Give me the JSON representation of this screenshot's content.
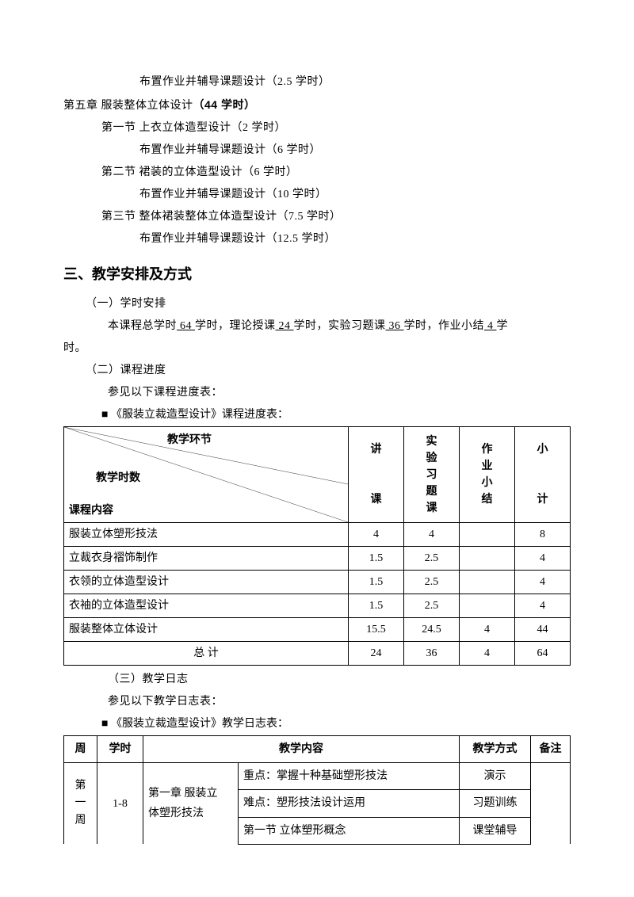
{
  "outline": {
    "l0": "布置作业并辅导课题设计（2.5 学时）",
    "chapter5": {
      "pre": "第五章  服装整体立体设计",
      "bold": "（44 学时）"
    },
    "s1": "第一节 上衣立体造型设计（2 学时）",
    "s1a": "布置作业并辅导课题设计（6 学时）",
    "s2": "第二节  裙装的立体造型设计（6 学时）",
    "s2a": "布置作业并辅导课题设计（10 学时）",
    "s3": "第三节 整体裙装整体立体造型设计（7.5 学时）",
    "s3a": "布置作业并辅导课题设计（12.5 学时）"
  },
  "h2": "三、教学安排及方式",
  "s_time": {
    "title": "（一）学时安排",
    "p_pre": "本课程总学时",
    "p_v1": " 64 ",
    "p_mid1": "学时，理论授课",
    "p_v2": "  24  ",
    "p_mid2": "学时，实验习题课",
    "p_v3": " 36 ",
    "p_mid3": "学时，作业小结",
    "p_v4": " 4  ",
    "p_tail": "学",
    "p_line2": "时。"
  },
  "s_prog": {
    "title": "（二）课程进度",
    "note": "参见以下课程进度表：",
    "bullet": "《服装立裁造型设计》课程进度表："
  },
  "tbl1": {
    "diag_top": "教学环节",
    "diag_mid": "教学时数",
    "diag_bot": "课程内容",
    "h_lecture": "讲\n\n课",
    "h_lab": "实\n验\n习\n题\n课",
    "h_hw": "作\n业\n小\n结",
    "h_sub": "小\n\n计",
    "rows": [
      {
        "name": "服装立体塑形技法",
        "a": "4",
        "b": "4",
        "c": "",
        "d": "8"
      },
      {
        "name": "立裁衣身褶饰制作",
        "a": "1.5",
        "b": "2.5",
        "c": "",
        "d": "4"
      },
      {
        "name": "衣领的立体造型设计",
        "a": "1.5",
        "b": "2.5",
        "c": "",
        "d": "4"
      },
      {
        "name": "衣袖的立体造型设计",
        "a": "1.5",
        "b": "2.5",
        "c": "",
        "d": "4"
      },
      {
        "name": "服装整体立体设计",
        "a": "15.5",
        "b": "24.5",
        "c": "4",
        "d": "44"
      }
    ],
    "total": {
      "name": "总     计",
      "a": "24",
      "b": "36",
      "c": "4",
      "d": "64"
    }
  },
  "s_log": {
    "title": "（三）教学日志",
    "note": "参见以下教学日志表：",
    "bullet": "《服装立裁造型设计》教学日志表："
  },
  "tbl2": {
    "h_week": "周",
    "h_hours": "学时",
    "h_content": "教学内容",
    "h_mode": "教学方式",
    "h_note": "备注",
    "r1": {
      "week": "第\n一\n周",
      "hours": "1-8",
      "ch": "第一章   服装立\n体塑形技法",
      "c1": "重点：掌握十种基础塑形技法",
      "c2": "难点：塑形技法设计运用",
      "c3": "第一节 立体塑形概念",
      "m1": "演示",
      "m2": "习题训练",
      "m3": "课堂辅导"
    }
  }
}
